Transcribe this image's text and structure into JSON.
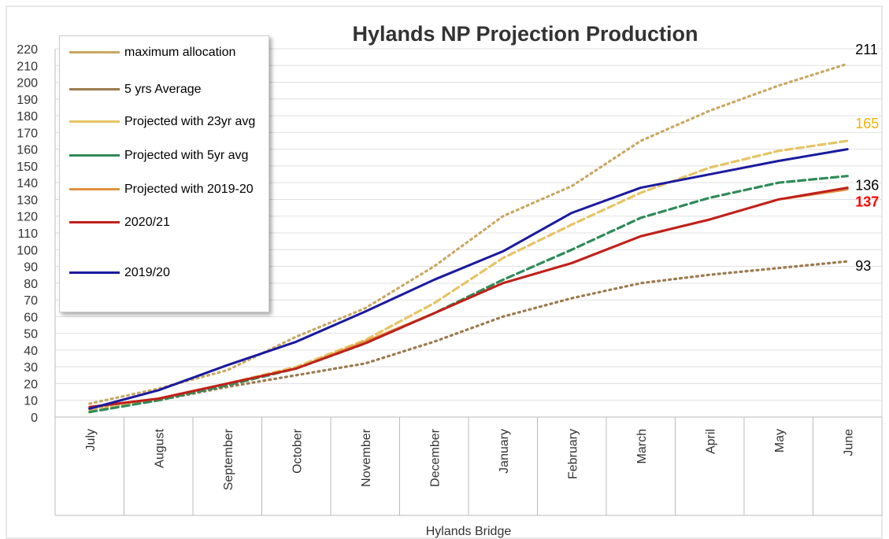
{
  "chart_data": {
    "type": "line",
    "title": "Hylands NP Projection Production",
    "x_label": "Hylands Bridge",
    "categories": [
      "July",
      "August",
      "September",
      "October",
      "November",
      "December",
      "January",
      "February",
      "March",
      "April",
      "May",
      "June"
    ],
    "ylim": [
      0,
      220
    ],
    "yticks": [
      0,
      10,
      20,
      30,
      40,
      50,
      60,
      70,
      80,
      90,
      100,
      110,
      120,
      130,
      140,
      150,
      160,
      170,
      180,
      190,
      200,
      210,
      220
    ],
    "grid": true,
    "legend": "top-left",
    "series": [
      {
        "name": "maximum allocation",
        "color": "#c9a862",
        "dash": "dotted",
        "values": [
          8,
          17,
          28,
          48,
          65,
          90,
          120,
          138,
          165,
          183,
          198,
          211
        ],
        "value_labels": [
          null,
          null,
          null,
          null,
          null,
          null,
          null,
          null,
          null,
          null,
          null,
          "211"
        ],
        "label_color": "#000000"
      },
      {
        "name": "5 yrs Average",
        "color": "#9c7a4e",
        "dash": "dotted",
        "values": [
          5,
          10,
          18,
          25,
          32,
          45,
          60,
          71,
          80,
          85,
          89,
          93
        ],
        "value_labels": [
          null,
          null,
          null,
          null,
          null,
          null,
          null,
          null,
          null,
          null,
          null,
          "93"
        ],
        "label_color": "#000000"
      },
      {
        "name": "Projected with 23yr avg",
        "color": "#e6c465",
        "dash": "dashed",
        "values": [
          4,
          10,
          20,
          30,
          46,
          68,
          95,
          115,
          134,
          149,
          159,
          165
        ],
        "value_labels": [
          null,
          null,
          null,
          null,
          null,
          null,
          null,
          null,
          null,
          null,
          null,
          "165"
        ],
        "label_color": "#f0b400"
      },
      {
        "name": "Projected  with 5yr avg",
        "color": "#2e8b57",
        "dash": "dashed",
        "values": [
          3,
          10,
          19,
          29,
          44,
          62,
          82,
          100,
          119,
          131,
          140,
          144
        ]
      },
      {
        "name": "Projected with 2019-20",
        "color": "#e09040",
        "dash": "solid",
        "values": [
          6,
          11,
          20,
          29,
          45,
          62,
          80,
          92,
          108,
          118,
          130,
          136
        ],
        "value_labels": [
          null,
          null,
          null,
          null,
          null,
          null,
          null,
          null,
          null,
          null,
          null,
          "136"
        ],
        "label_color": "#000000"
      },
      {
        "name": "2020/21",
        "color": "#c0201c",
        "dash": "solid",
        "values": [
          6,
          11,
          20,
          29,
          44,
          62,
          80,
          92,
          108,
          118,
          130,
          137
        ],
        "value_labels": [
          null,
          null,
          null,
          null,
          null,
          null,
          null,
          null,
          null,
          null,
          null,
          "137"
        ],
        "label_color": "#ff0000"
      },
      {
        "name": "2019/20",
        "color": "#1a1aa0",
        "dash": "solid",
        "values": [
          5,
          16,
          31,
          45,
          63,
          82,
          99,
          122,
          137,
          145,
          153,
          160
        ]
      }
    ]
  }
}
